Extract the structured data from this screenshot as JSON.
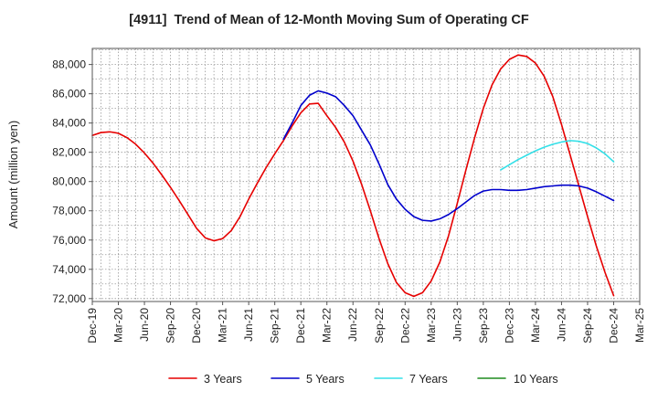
{
  "chart_data": {
    "type": "line",
    "title": "[4911]  Trend of Mean of 12-Month Moving Sum of Operating CF",
    "xlabel": "",
    "ylabel": "Amount (million yen)",
    "x_range_months": [
      0,
      63
    ],
    "x_tick_step_months": 3,
    "x_tick_labels": [
      "Dec-19",
      "Mar-20",
      "Jun-20",
      "Sep-20",
      "Dec-20",
      "Mar-21",
      "Jun-21",
      "Sep-21",
      "Dec-21",
      "Mar-22",
      "Jun-22",
      "Sep-22",
      "Dec-22",
      "Mar-23",
      "Jun-23",
      "Sep-23",
      "Dec-23",
      "Mar-24",
      "Jun-24",
      "Sep-24",
      "Dec-24",
      "Mar-25"
    ],
    "ylim": [
      71800,
      89100
    ],
    "y_grid_step": 1000,
    "y_ticks": [
      {
        "value": 72000,
        "label": "72,000"
      },
      {
        "value": 74000,
        "label": "74,000"
      },
      {
        "value": 76000,
        "label": "76,000"
      },
      {
        "value": 78000,
        "label": "78,000"
      },
      {
        "value": 80000,
        "label": "80,000"
      },
      {
        "value": 82000,
        "label": "82,000"
      },
      {
        "value": 84000,
        "label": "84,000"
      },
      {
        "value": 86000,
        "label": "86,000"
      },
      {
        "value": 88000,
        "label": "88,000"
      }
    ],
    "grid": true,
    "series": [
      {
        "name": "3 Years",
        "color": "#e60000",
        "start_month": 0,
        "values": [
          83150,
          83350,
          83400,
          83300,
          83000,
          82550,
          81950,
          81250,
          80450,
          79600,
          78700,
          77750,
          76800,
          76150,
          75950,
          76100,
          76650,
          77600,
          78800,
          79900,
          80950,
          81900,
          82800,
          83800,
          84700,
          85300,
          85350,
          84500,
          83700,
          82700,
          81400,
          79800,
          78000,
          76100,
          74400,
          73100,
          72400,
          72150,
          72400,
          73200,
          74500,
          76300,
          78500,
          80800,
          83000,
          85000,
          86600,
          87700,
          88350,
          88650,
          88550,
          88100,
          87200,
          85800,
          83900,
          81800,
          79700,
          77600,
          75600,
          73800,
          72200
        ]
      },
      {
        "name": "5 Years",
        "color": "#0000cc",
        "start_month": 22,
        "values": [
          82900,
          84000,
          85200,
          85900,
          86200,
          86050,
          85800,
          85200,
          84500,
          83500,
          82500,
          81200,
          79800,
          78800,
          78100,
          77600,
          77350,
          77300,
          77450,
          77750,
          78150,
          78600,
          79050,
          79350,
          79450,
          79450,
          79400,
          79400,
          79450,
          79550,
          79650,
          79700,
          79750,
          79750,
          79700,
          79550,
          79300,
          79000,
          78700
        ]
      },
      {
        "name": "7 Years",
        "color": "#33e0e8",
        "start_month": 47,
        "values": [
          80800,
          81150,
          81500,
          81800,
          82100,
          82350,
          82550,
          82700,
          82800,
          82750,
          82600,
          82300,
          81900,
          81350
        ]
      },
      {
        "name": "10 Years",
        "color": "#1e8c1e",
        "start_month": 0,
        "values": []
      }
    ]
  }
}
